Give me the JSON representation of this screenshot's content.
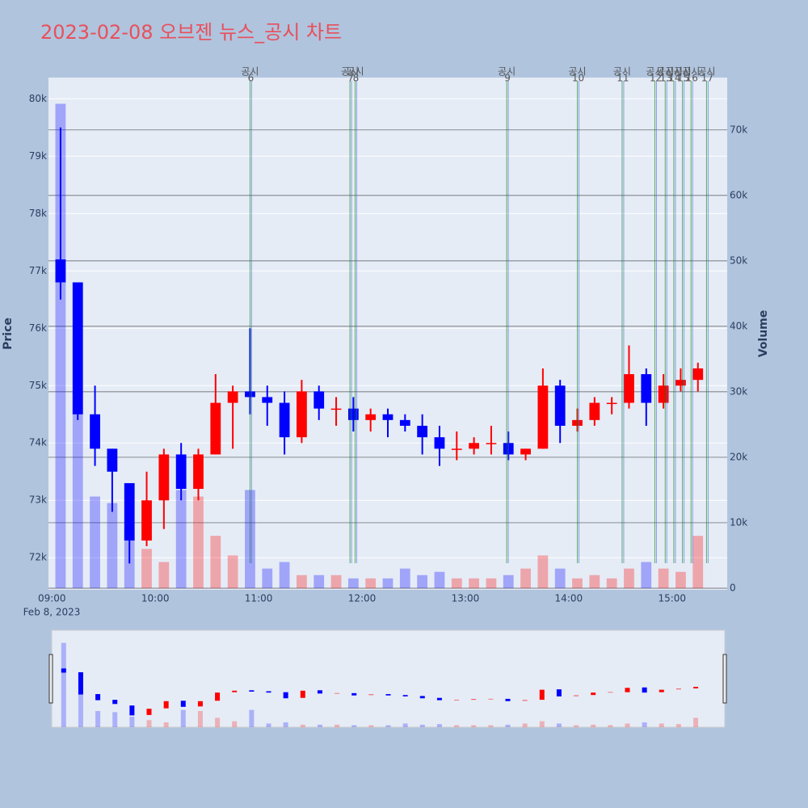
{
  "chart_data": {
    "type": "candlestick",
    "title": "2023-02-08 오브젠 뉴스_공시 차트",
    "y_label": "Price",
    "y2_label": "Volume",
    "x_date_label": "Feb 8, 2023",
    "increasing_color": "#ff0000",
    "decreasing_color": "#0000ff",
    "x": [
      "09:00",
      "09:10",
      "09:20",
      "09:30",
      "09:40",
      "09:50",
      "10:00",
      "10:10",
      "10:20",
      "10:30",
      "10:40",
      "10:50",
      "11:00",
      "11:10",
      "11:20",
      "11:30",
      "11:40",
      "11:50",
      "12:00",
      "12:10",
      "12:20",
      "12:30",
      "12:40",
      "12:50",
      "13:00",
      "13:10",
      "13:20",
      "13:30",
      "13:40",
      "13:50",
      "14:00",
      "14:10",
      "14:20",
      "14:30",
      "14:40",
      "14:50",
      "15:00",
      "15:10"
    ],
    "open": [
      77200,
      76800,
      74500,
      73900,
      73300,
      72300,
      73000,
      73800,
      73200,
      73800,
      74700,
      74900,
      74800,
      74700,
      74100,
      74900,
      74600,
      74600,
      74400,
      74500,
      74400,
      74300,
      74100,
      73900,
      73900,
      74000,
      74000,
      73800,
      73900,
      75000,
      74300,
      74400,
      74700,
      74700,
      75200,
      74700,
      75000,
      75100
    ],
    "high": [
      79500,
      76800,
      75000,
      73900,
      73300,
      73500,
      73900,
      74000,
      73900,
      75200,
      75000,
      76000,
      75000,
      74900,
      75100,
      75000,
      74800,
      74800,
      74600,
      74600,
      74500,
      74500,
      74300,
      74200,
      74100,
      74300,
      74200,
      73900,
      75300,
      75100,
      74600,
      74800,
      74800,
      75700,
      75300,
      75200,
      75300,
      75400
    ],
    "low": [
      76500,
      74400,
      73600,
      72800,
      71900,
      72200,
      72500,
      73000,
      73000,
      73800,
      73900,
      74500,
      74300,
      73800,
      74000,
      74400,
      74300,
      74200,
      74200,
      74100,
      74200,
      73800,
      73600,
      73700,
      73800,
      73800,
      73700,
      73700,
      73900,
      74000,
      74200,
      74300,
      74500,
      74600,
      74300,
      74600,
      74900,
      74900
    ],
    "close": [
      76800,
      74500,
      73900,
      73500,
      72300,
      73000,
      73800,
      73200,
      73800,
      74700,
      74900,
      74800,
      74700,
      74100,
      74900,
      74600,
      74600,
      74400,
      74500,
      74400,
      74300,
      74100,
      73900,
      73900,
      74000,
      74000,
      73800,
      73900,
      75000,
      74300,
      74400,
      74700,
      74700,
      75200,
      74700,
      75000,
      75100,
      75300
    ],
    "volume": [
      74000,
      30000,
      14000,
      13000,
      9000,
      6000,
      4000,
      15000,
      14000,
      8000,
      5000,
      15000,
      3000,
      4000,
      2000,
      2000,
      2000,
      1500,
      1500,
      1500,
      3000,
      2000,
      2500,
      1500,
      1500,
      1500,
      2000,
      3000,
      5000,
      3000,
      1500,
      2000,
      1500,
      3000,
      4000,
      3000,
      2500,
      8000
    ],
    "events": [
      {
        "time": "10:55",
        "label": "공시",
        "number": 6
      },
      {
        "time": "11:53",
        "label": "공시",
        "number": 7
      },
      {
        "time": "11:56",
        "label": "공시",
        "number": 8
      },
      {
        "time": "13:24",
        "label": "공시",
        "number": 9
      },
      {
        "time": "14:05",
        "label": "공시",
        "number": 10
      },
      {
        "time": "14:31",
        "label": "공시",
        "number": 11
      },
      {
        "time": "14:50",
        "label": "공시",
        "number": 12
      },
      {
        "time": "14:56",
        "label": "공시",
        "number": 13
      },
      {
        "time": "15:01",
        "label": "공시",
        "number": 14
      },
      {
        "time": "15:06",
        "label": "공시",
        "number": 15
      },
      {
        "time": "15:11",
        "label": "공시",
        "number": 16
      },
      {
        "time": "15:20",
        "label": "공시",
        "number": 17
      }
    ],
    "xlim": [
      "08:58",
      "15:32"
    ],
    "xticks": [
      "09:00",
      "10:00",
      "11:00",
      "12:00",
      "13:00",
      "14:00",
      "15:00"
    ],
    "ylim": [
      71440,
      80370
    ],
    "yticks": [
      {
        "value": 72000,
        "label": "72k"
      },
      {
        "value": 73000,
        "label": "73k"
      },
      {
        "value": 74000,
        "label": "74k"
      },
      {
        "value": 75000,
        "label": "75k"
      },
      {
        "value": 76000,
        "label": "76k"
      },
      {
        "value": 77000,
        "label": "77k"
      },
      {
        "value": 78000,
        "label": "78k"
      },
      {
        "value": 79000,
        "label": "79k"
      },
      {
        "value": 80000,
        "label": "80k"
      }
    ],
    "y2lim": [
      -250,
      78000
    ],
    "y2ticks": [
      0,
      {
        "value": 10000,
        "label": "10k"
      },
      {
        "value": 20000,
        "label": "20k"
      },
      {
        "value": 30000,
        "label": "30k"
      },
      {
        "value": 40000,
        "label": "40k"
      },
      {
        "value": 50000,
        "label": "50k"
      },
      {
        "value": 60000,
        "label": "60k"
      },
      {
        "value": 70000,
        "label": "70k"
      }
    ],
    "grid": true
  }
}
